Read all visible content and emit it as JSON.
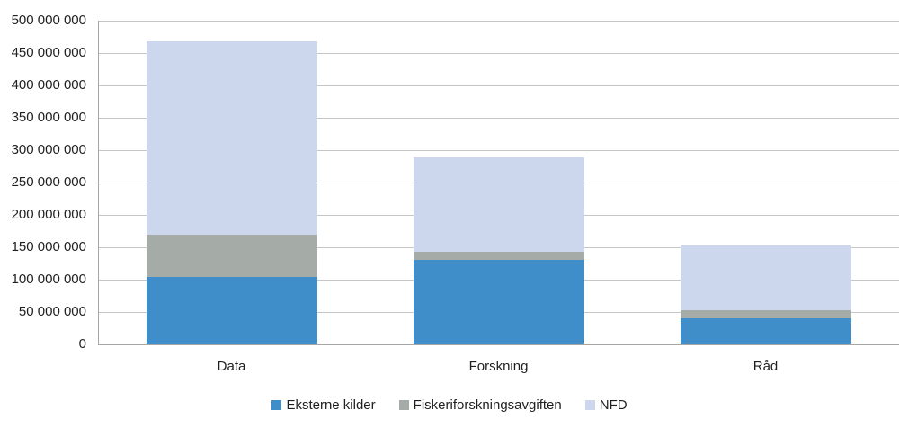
{
  "chart_data": {
    "type": "bar",
    "stacked": true,
    "title": "",
    "xlabel": "",
    "ylabel": "",
    "categories": [
      "Data",
      "Forskning",
      "Råd"
    ],
    "series": [
      {
        "name": "Eksterne kilder",
        "color": "#3F8EC9",
        "values": [
          104000000,
          130000000,
          40000000
        ]
      },
      {
        "name": "Fiskeriforskningsavgiften",
        "color": "#A5ACA8",
        "values": [
          66000000,
          13000000,
          13000000
        ]
      },
      {
        "name": "NFD",
        "color": "#CCD6EC",
        "values": [
          298000000,
          146000000,
          100000000
        ]
      }
    ],
    "totals": [
      468000000,
      289000000,
      153000000
    ],
    "ylim": [
      0,
      500000000
    ],
    "ytick_step": 50000000,
    "ytick_labels": [
      "0",
      "50 000 000",
      "100 000 000",
      "150 000 000",
      "200 000 000",
      "250 000 000",
      "300 000 000",
      "350 000 000",
      "400 000 000",
      "450 000 000",
      "500 000 000"
    ],
    "grid": true,
    "legend_position": "bottom"
  },
  "colors": {
    "background": "#FFFFFF",
    "gridline": "#C6C6C6",
    "axis_line": "#A6A6A6",
    "text": "#1F1F1F"
  }
}
